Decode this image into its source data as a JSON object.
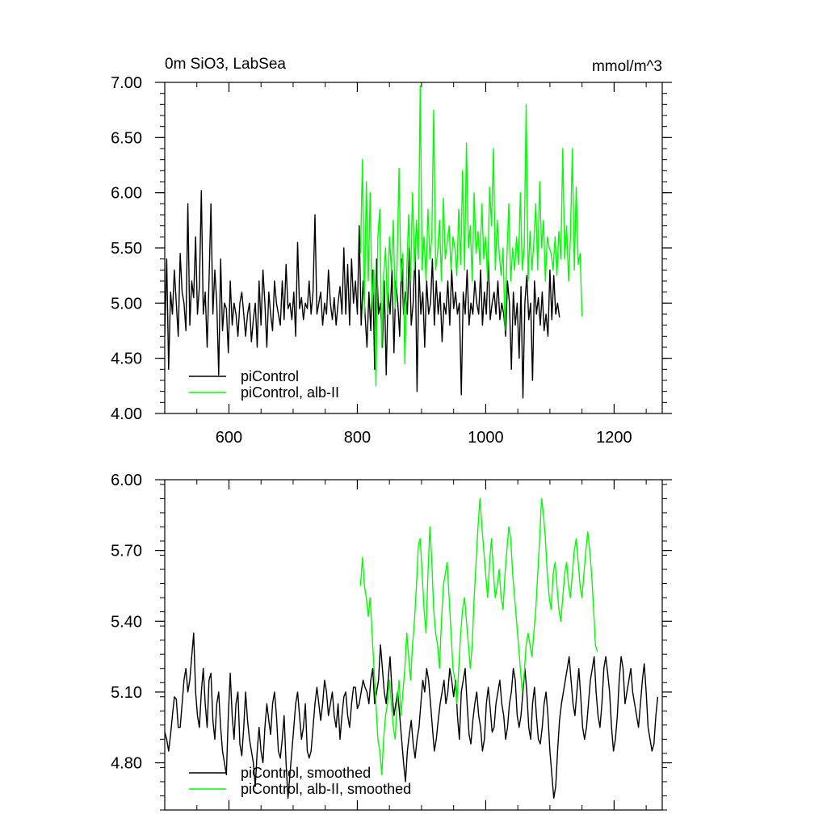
{
  "chart_data": [
    {
      "type": "line",
      "title": "0m SiO3, LabSea",
      "units": "mmol/m^3",
      "xlim": [
        500,
        1275
      ],
      "ylim": [
        4.0,
        7.0
      ],
      "xticks": [
        600,
        800,
        1000,
        1200
      ],
      "xtick_labels": [
        "600",
        "800",
        "1000",
        "1200"
      ],
      "yticks": [
        4.0,
        4.5,
        5.0,
        5.5,
        6.0,
        6.5,
        7.0
      ],
      "ytick_labels": [
        "4.00",
        "4.50",
        "5.00",
        "5.50",
        "6.00",
        "6.50",
        "7.00"
      ],
      "grid": false,
      "legend": "bottom-left",
      "series": [
        {
          "name": "piControl",
          "color": "#000000",
          "x_start": 500,
          "x_step": 3,
          "values": [
            4.7,
            5.4,
            4.4,
            5.1,
            4.9,
            5.3,
            5.0,
            4.7,
            5.45,
            5.1,
            5.0,
            4.75,
            5.9,
            4.8,
            5.2,
            5.05,
            5.6,
            4.9,
            5.15,
            6.02,
            4.9,
            5.1,
            4.6,
            5.2,
            5.9,
            4.9,
            5.3,
            5.0,
            4.35,
            5.4,
            4.75,
            5.0,
            4.95,
            4.55,
            5.2,
            4.8,
            5.0,
            4.9,
            4.7,
            5.0,
            5.1,
            4.9,
            4.7,
            4.9,
            5.0,
            4.65,
            4.85,
            5.0,
            4.6,
            5.2,
            4.8,
            5.3,
            5.0,
            4.6,
            5.1,
            4.9,
            4.75,
            5.2,
            5.0,
            4.9,
            4.8,
            5.2,
            4.85,
            5.35,
            4.95,
            5.0,
            4.85,
            5.1,
            4.7,
            5.55,
            4.95,
            5.05,
            4.85,
            5.0,
            4.95,
            5.2,
            4.9,
            5.1,
            5.8,
            4.9,
            5.0,
            5.1,
            4.8,
            5.0,
            4.9,
            5.3,
            5.0,
            4.85,
            5.05,
            4.8,
            5.0,
            5.15,
            4.9,
            5.5,
            4.9,
            5.35,
            4.8,
            5.4,
            5.0,
            5.2,
            4.9,
            5.7,
            4.8,
            5.2,
            4.9,
            4.6,
            5.1,
            4.75,
            5.3,
            4.4,
            5.4,
            4.9,
            5.0,
            4.6,
            5.2,
            4.35,
            5.1,
            4.9,
            5.3,
            4.55,
            5.2,
            5.0,
            4.7,
            5.4,
            4.9,
            5.1,
            4.9,
            5.5,
            4.8,
            5.0,
            5.5,
            4.2,
            5.3,
            4.9,
            5.1,
            4.6,
            5.2,
            4.9,
            5.0,
            5.4,
            4.8,
            5.2,
            4.9,
            5.1,
            4.65,
            5.0,
            4.9,
            5.2,
            4.8,
            5.3,
            4.95,
            5.1,
            4.9,
            5.0,
            4.17,
            5.1,
            4.9,
            5.3,
            4.8,
            5.0,
            4.9,
            5.2,
            5.0,
            4.9,
            5.3,
            4.8,
            5.1,
            4.9,
            5.4,
            4.85,
            5.0,
            5.1,
            4.9,
            5.2,
            4.85,
            5.0,
            4.9,
            4.7,
            5.2,
            5.0,
            4.4,
            5.1,
            4.8,
            5.0,
            4.5,
            5.15,
            4.14,
            5.0,
            5.25,
            4.85,
            5.0,
            4.3,
            5.2,
            4.9,
            5.05,
            4.8,
            5.1,
            4.75,
            4.9,
            4.7,
            5.3,
            4.85,
            5.25,
            4.9,
            5.0,
            4.87
          ]
        },
        {
          "name": "piControl, alb-II",
          "color": "#00ff00",
          "x_start": 805,
          "x_step": 3,
          "values": [
            5.45,
            6.3,
            4.9,
            6.1,
            5.2,
            6.0,
            4.95,
            5.3,
            4.25,
            5.6,
            5.85,
            4.6,
            5.25,
            5.5,
            4.9,
            5.6,
            5.3,
            5.75,
            4.95,
            5.35,
            6.22,
            5.2,
            5.45,
            4.45,
            5.3,
            5.8,
            5.2,
            6.0,
            5.3,
            5.75,
            5.4,
            6.97,
            5.3,
            5.6,
            5.2,
            5.85,
            5.4,
            5.6,
            6.75,
            5.3,
            5.45,
            5.75,
            5.2,
            5.95,
            5.4,
            5.55,
            5.7,
            5.3,
            5.6,
            5.5,
            5.25,
            5.85,
            5.35,
            6.2,
            5.3,
            6.45,
            5.5,
            5.7,
            5.2,
            6.0,
            5.45,
            5.65,
            5.35,
            5.9,
            5.4,
            5.6,
            5.2,
            6.05,
            5.7,
            6.4,
            5.3,
            5.75,
            5.45,
            5.25,
            5.5,
            4.75,
            5.4,
            5.9,
            5.2,
            5.5,
            5.3,
            5.6,
            5.35,
            6.0,
            5.3,
            5.5,
            6.8,
            5.2,
            5.65,
            5.3,
            5.55,
            5.9,
            5.3,
            6.1,
            5.5,
            5.75,
            5.2,
            5.6,
            5.5,
            5.45,
            5.3,
            5.6,
            5.25,
            5.65,
            5.4,
            6.4,
            5.4,
            5.7,
            5.2,
            5.6,
            6.4,
            5.3,
            6.05,
            5.35,
            5.45,
            4.88
          ]
        }
      ]
    },
    {
      "type": "line",
      "xlim": [
        500,
        1275
      ],
      "ylim": [
        4.6,
        6.0
      ],
      "xticks": [
        600,
        800,
        1000,
        1200
      ],
      "yticks": [
        4.8,
        5.1,
        5.4,
        5.7,
        6.0
      ],
      "ytick_labels": [
        "4.80",
        "5.10",
        "5.40",
        "5.70",
        "6.00"
      ],
      "grid": false,
      "legend": "bottom-left",
      "series": [
        {
          "name": "piControl, smoothed",
          "color": "#000000",
          "x_start": 500,
          "x_step": 3,
          "values": [
            4.93,
            4.9,
            4.85,
            4.92,
            5.0,
            5.08,
            5.07,
            4.95,
            4.95,
            5.05,
            5.15,
            5.2,
            5.1,
            5.15,
            5.25,
            5.35,
            5.1,
            5.0,
            4.95,
            5.1,
            5.2,
            5.05,
            4.95,
            5.15,
            5.18,
            4.98,
            4.9,
            5.05,
            5.1,
            4.95,
            4.85,
            4.8,
            4.75,
            5.0,
            5.18,
            5.0,
            4.9,
            5.05,
            5.1,
            4.88,
            4.83,
            4.95,
            5.1,
            4.98,
            4.9,
            4.85,
            4.8,
            4.7,
            4.85,
            4.95,
            4.85,
            4.8,
            4.95,
            5.05,
            4.98,
            4.92,
            5.05,
            5.1,
            5.0,
            4.85,
            4.82,
            4.9,
            5.0,
            4.8,
            4.65,
            4.75,
            4.85,
            4.95,
            5.05,
            5.1,
            5.0,
            4.9,
            4.95,
            5.05,
            4.85,
            4.82,
            4.85,
            4.95,
            5.05,
            5.12,
            5.05,
            4.98,
            5.05,
            5.15,
            5.1,
            5.0,
            5.05,
            5.1,
            5.0,
            4.95,
            5.05,
            4.9,
            5.0,
            5.08,
            5.1,
            5.0,
            4.95,
            5.05,
            5.12,
            5.12,
            5.03,
            5.05,
            5.1,
            5.15,
            5.12,
            5.1,
            5.05,
            5.15,
            5.2,
            5.05,
            5.1,
            5.15,
            5.3,
            5.2,
            5.1,
            5.05,
            5.15,
            5.25,
            5.1,
            5.0,
            5.05,
            5.1,
            5.0,
            4.9,
            4.8,
            4.72,
            4.85,
            4.92,
            4.98,
            4.88,
            4.82,
            4.9,
            4.95,
            5.05,
            5.15,
            5.1,
            5.2,
            5.15,
            5.05,
            4.95,
            4.85,
            4.9,
            4.98,
            5.05,
            5.1,
            5.15,
            5.05,
            5.1,
            5.2,
            5.15,
            5.08,
            5.15,
            5.0,
            4.9,
            5.1,
            5.15,
            5.2,
            5.05,
            4.92,
            4.88,
            4.98,
            5.05,
            5.1,
            5.0,
            4.95,
            4.85,
            4.9,
            5.05,
            5.12,
            5.03,
            4.93,
            4.95,
            5.05,
            5.1,
            5.15,
            5.05,
            5.0,
            4.9,
            4.95,
            5.05,
            5.1,
            5.2,
            5.15,
            5.0,
            4.95,
            5.0,
            5.1,
            5.2,
            5.1,
            4.95,
            4.9,
            5.05,
            5.12,
            5.0,
            4.9,
            4.88,
            4.95,
            5.05,
            5.1,
            5.0,
            4.85,
            4.75,
            4.65,
            4.7,
            4.85,
            4.98,
            5.05,
            5.1,
            5.15,
            5.2,
            5.25,
            5.15,
            5.05,
            5.0,
            5.1,
            5.2,
            5.08,
            4.95,
            4.9,
            4.95,
            5.05,
            5.15,
            5.2,
            5.25,
            5.1,
            5.0,
            4.95,
            5.05,
            5.2,
            5.25,
            5.18,
            5.1,
            4.95,
            4.85,
            4.9,
            5.0,
            5.15,
            5.25,
            5.2,
            5.05,
            5.1,
            5.15,
            5.2,
            5.1,
            5.05,
            5.0,
            4.95,
            5.05,
            5.15,
            5.22,
            5.1,
            4.95,
            4.9,
            4.85,
            4.88,
            5.0,
            5.08
          ]
        },
        {
          "name": "piControl, alb-II, smoothed",
          "color": "#00ff00",
          "x_start": 805,
          "x_step": 3,
          "values": [
            5.55,
            5.67,
            5.55,
            5.5,
            5.42,
            5.5,
            5.35,
            5.2,
            5.05,
            4.9,
            4.85,
            4.75,
            4.9,
            5.0,
            5.05,
            5.15,
            5.05,
            4.95,
            4.9,
            5.05,
            5.15,
            5.0,
            5.1,
            5.2,
            5.35,
            5.25,
            5.15,
            5.3,
            5.4,
            5.55,
            5.72,
            5.75,
            5.6,
            5.45,
            5.35,
            5.6,
            5.8,
            5.65,
            5.45,
            5.35,
            5.3,
            5.2,
            5.4,
            5.55,
            5.6,
            5.65,
            5.5,
            5.35,
            5.2,
            5.15,
            5.05,
            5.2,
            5.35,
            5.45,
            5.5,
            5.4,
            5.3,
            5.2,
            5.3,
            5.5,
            5.65,
            5.8,
            5.92,
            5.8,
            5.7,
            5.6,
            5.5,
            5.65,
            5.75,
            5.6,
            5.5,
            5.55,
            5.62,
            5.5,
            5.45,
            5.6,
            5.7,
            5.8,
            5.75,
            5.6,
            5.5,
            5.4,
            5.3,
            5.2,
            5.1,
            5.18,
            5.3,
            5.35,
            5.3,
            5.25,
            5.35,
            5.45,
            5.6,
            5.75,
            5.92,
            5.85,
            5.75,
            5.6,
            5.5,
            5.45,
            5.6,
            5.65,
            5.55,
            5.45,
            5.4,
            5.5,
            5.6,
            5.65,
            5.55,
            5.5,
            5.6,
            5.7,
            5.75,
            5.65,
            5.55,
            5.5,
            5.6,
            5.7,
            5.78,
            5.7,
            5.6,
            5.45,
            5.3,
            5.27
          ]
        }
      ]
    }
  ]
}
